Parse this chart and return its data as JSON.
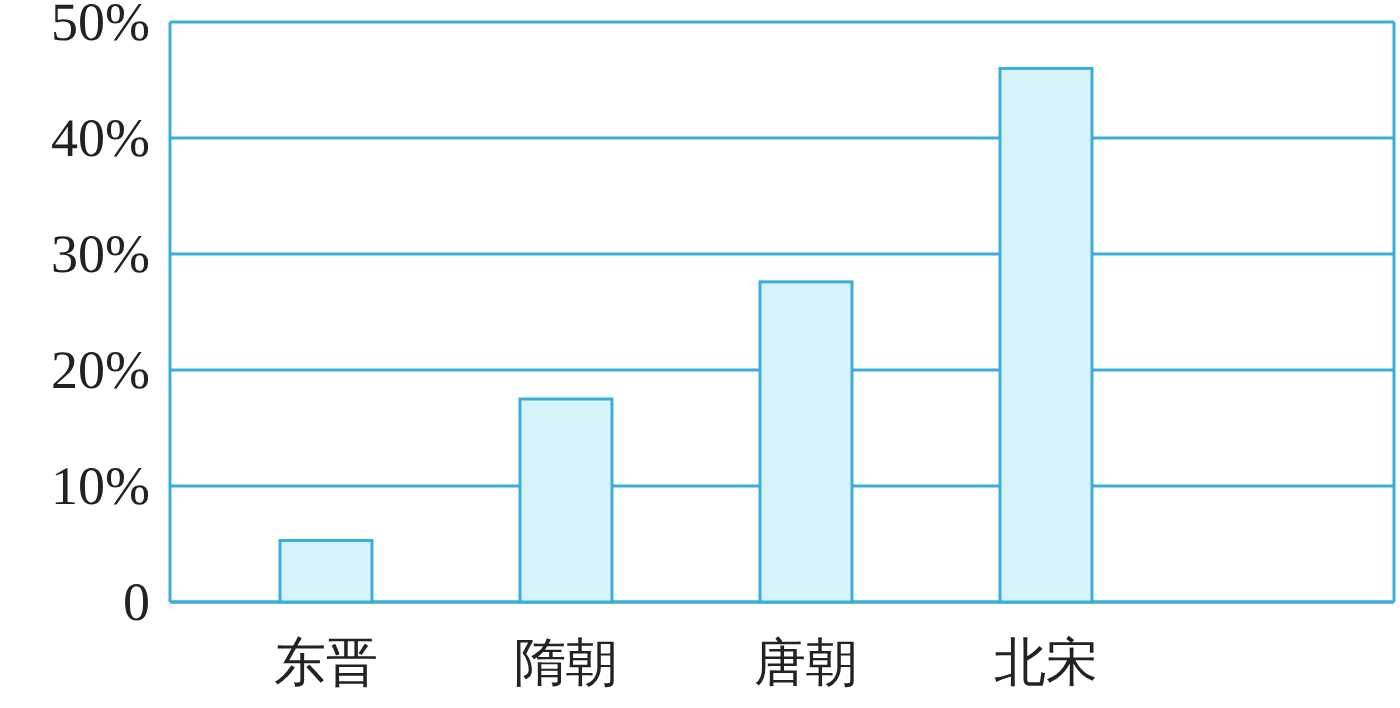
{
  "chart_data": {
    "type": "bar",
    "categories": [
      "东晋",
      "隋朝",
      "唐朝",
      "北宋"
    ],
    "values": [
      5.3,
      17.5,
      27.6,
      46
    ],
    "color": "#d6f3fa",
    "ylim": [
      0,
      50
    ],
    "yticks": [
      {
        "value": 0,
        "label": "0"
      },
      {
        "value": 10,
        "label": "10%"
      },
      {
        "value": 20,
        "label": "20%"
      },
      {
        "value": 30,
        "label": "30%"
      },
      {
        "value": 40,
        "label": "40%"
      },
      {
        "value": 50,
        "label": "50%"
      }
    ],
    "grid": "y"
  }
}
